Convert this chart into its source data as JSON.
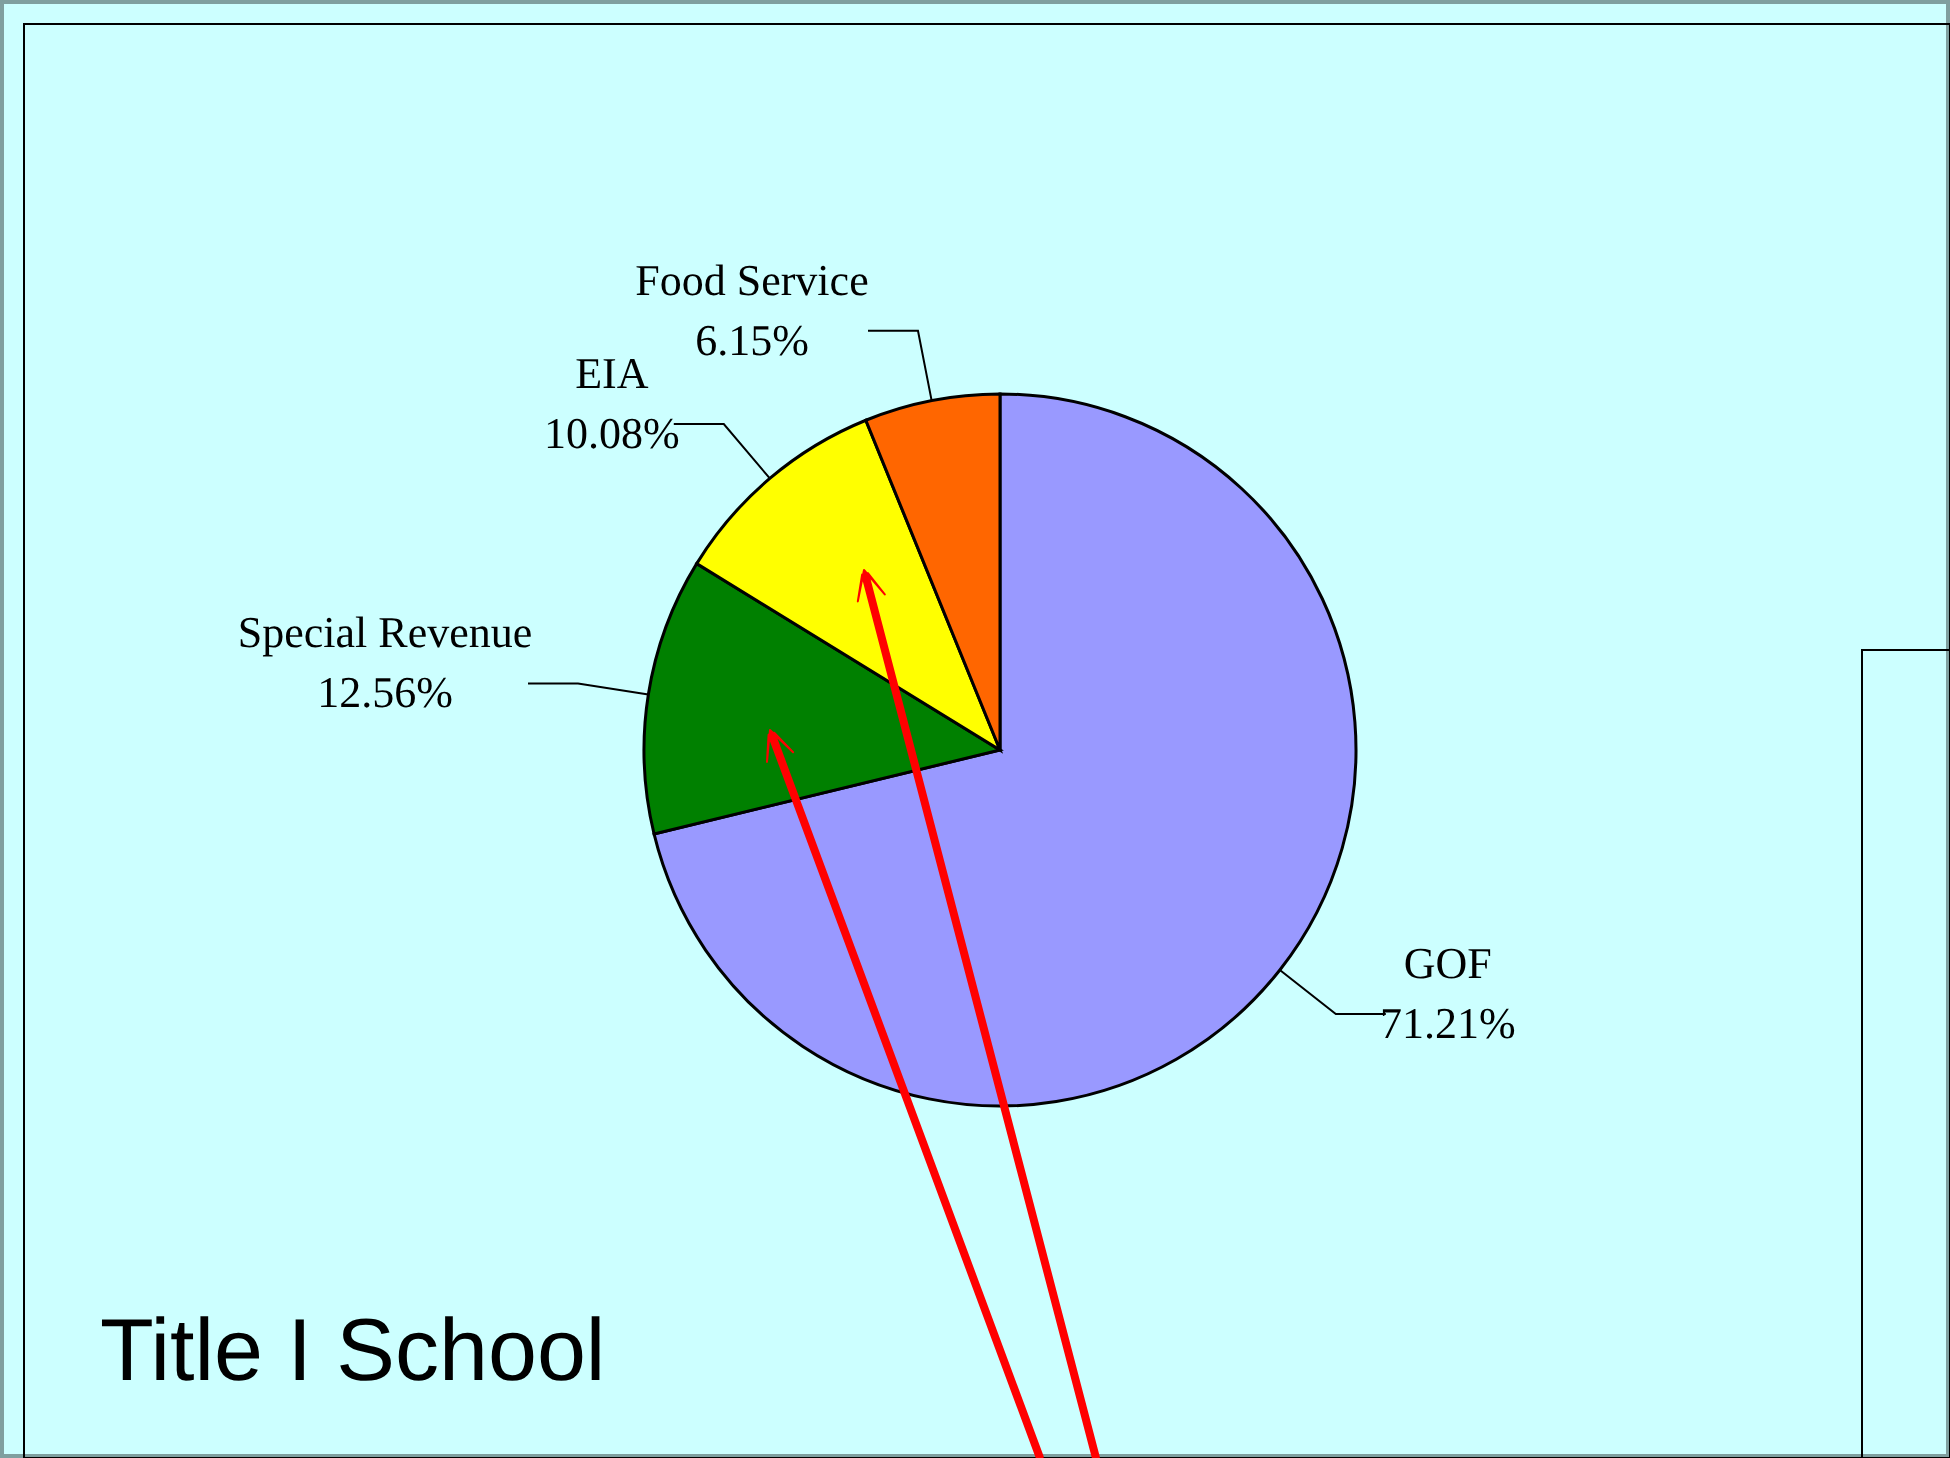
{
  "chart_data": {
    "type": "pie",
    "title": "Title I School",
    "categories": [
      "GOF",
      "Special Revenue",
      "EIA",
      "Food Service"
    ],
    "values": [
      71.21,
      12.56,
      10.08,
      6.15
    ],
    "value_labels": [
      "71.21%",
      "12.56%",
      "10.08%",
      "6.15%"
    ],
    "colors": [
      "#9999ff",
      "#008000",
      "#ffff00",
      "#ff6600"
    ]
  }
}
